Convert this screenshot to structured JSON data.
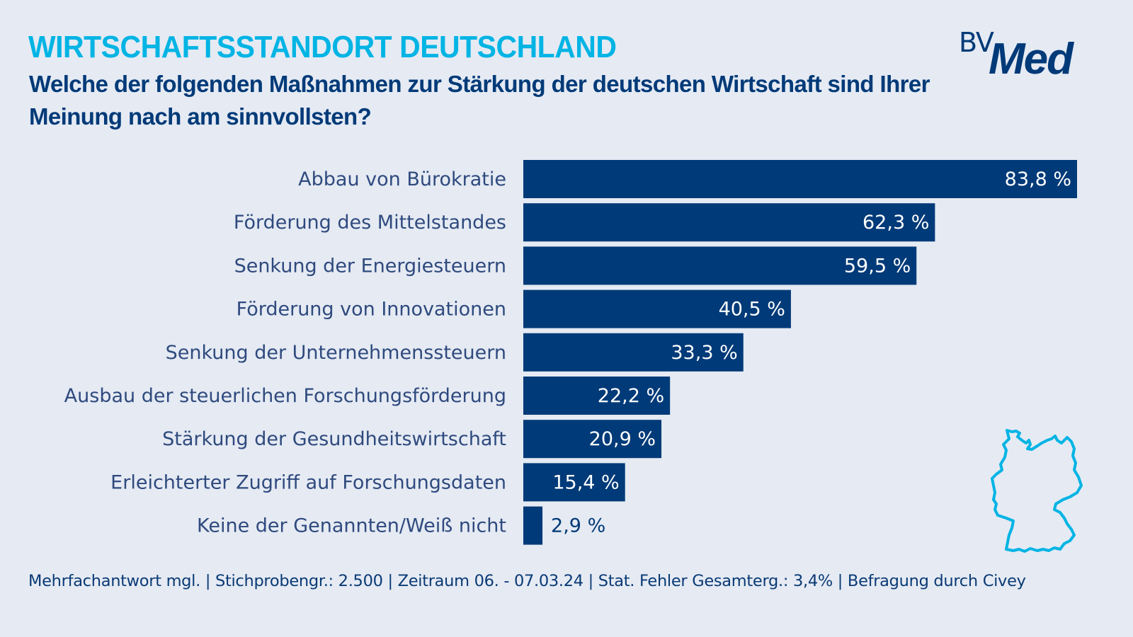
{
  "header": {
    "title": "WIRTSCHAFTSSTANDORT DEUTSCHLAND",
    "subtitle": "Welche der folgenden Maßnahmen zur Stärkung der deutschen Wirtschaft sind Ihrer Meinung nach am sinnvollsten?"
  },
  "logo": {
    "prefix": "BV",
    "main": "Med"
  },
  "colors": {
    "background": "#e5eaf3",
    "title": "#00b4e4",
    "bar": "#003a78",
    "label": "#2f4a7e",
    "map_outline": "#00b4e4"
  },
  "chart_data": {
    "type": "bar",
    "orientation": "horizontal",
    "title": "Welche der folgenden Maßnahmen zur Stärkung der deutschen Wirtschaft sind Ihrer Meinung nach am sinnvollsten?",
    "xlabel": "",
    "ylabel": "",
    "unit": "%",
    "xlim": [
      0,
      83.8
    ],
    "grid": false,
    "categories": [
      "Abbau von Bürokratie",
      "Förderung des Mittelstandes",
      "Senkung der Energiesteuern",
      "Förderung von Innovationen",
      "Senkung der Unternehmenssteuern",
      "Ausbau der steuerlichen Forschungsförderung",
      "Stärkung der Gesundheitswirtschaft",
      "Erleichterter Zugriff auf Forschungsdaten",
      "Keine der Genannten/Weiß nicht"
    ],
    "values": [
      83.8,
      62.3,
      59.5,
      40.5,
      33.3,
      22.2,
      20.9,
      15.4,
      2.9
    ],
    "value_labels": [
      "83,8 %",
      "62,3 %",
      "59,5 %",
      "40,5 %",
      "33,3 %",
      "22,2 %",
      "20,9 %",
      "15,4 %",
      "2,9 %"
    ]
  },
  "footnote": "Mehrfachantwort mgl. | Stichprobengr.: 2.500 | Zeitraum 06. - 07.03.24 | Stat. Fehler Gesamterg.: 3,4% | Befragung durch Civey",
  "icons": {
    "map": "germany-outline-icon"
  }
}
